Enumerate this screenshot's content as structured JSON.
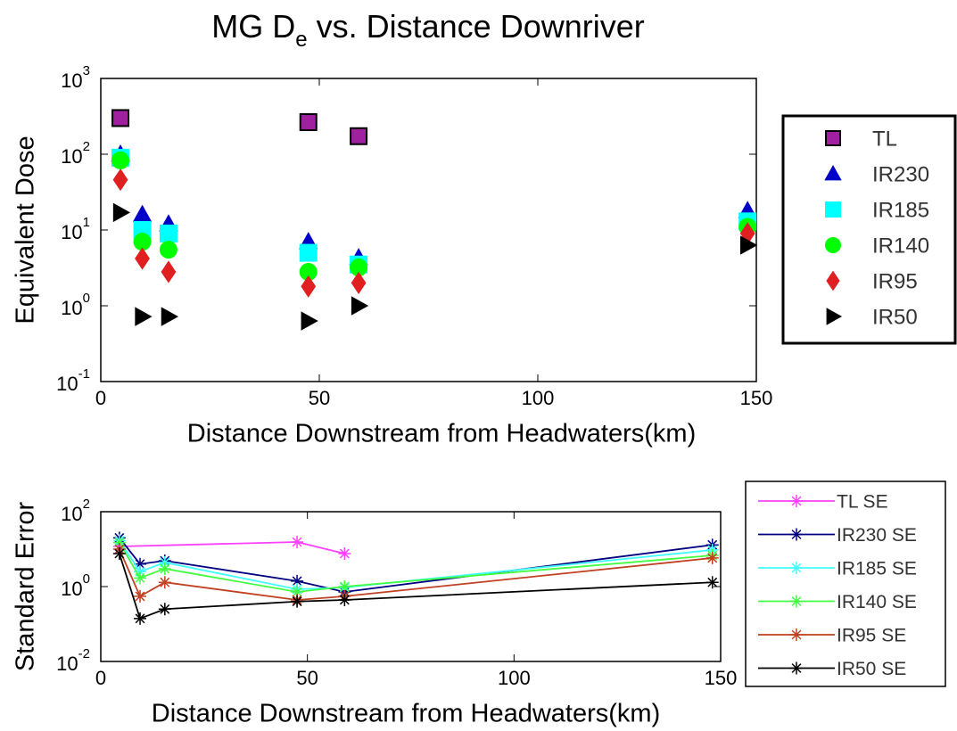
{
  "chart_data": [
    {
      "type": "scatter",
      "title": "MG D",
      "title_subscript": "e",
      "title_rest": " vs. Distance Downriver",
      "xlabel": "Distance Downstream from Headwaters(km)",
      "ylabel": "Equivalent Dose",
      "xlim": [
        0,
        150
      ],
      "xticks": [
        0,
        50,
        100,
        150
      ],
      "ylim": [
        0.1,
        1000
      ],
      "yscale": "log",
      "yticks": [
        {
          "value": 0.1,
          "label": "10",
          "exponent": "-1"
        },
        {
          "value": 1,
          "label": "10",
          "exponent": "0"
        },
        {
          "value": 10,
          "label": "10",
          "exponent": "1"
        },
        {
          "value": 100,
          "label": "10",
          "exponent": "2"
        },
        {
          "value": 1000,
          "label": "10",
          "exponent": "3"
        }
      ],
      "legend": "outside right",
      "x": [
        4.5,
        9.5,
        15.5,
        47.5,
        59,
        148
      ],
      "series": [
        {
          "name": "TL",
          "color": "#a020a0",
          "marker": "square",
          "values": [
            300,
            null,
            null,
            265,
            173,
            null
          ]
        },
        {
          "name": "IR230",
          "color": "#0000c8",
          "marker": "triangle-up",
          "values": [
            100,
            16,
            12,
            7,
            4.3,
            18
          ]
        },
        {
          "name": "IR185",
          "color": "#00ffff",
          "marker": "square",
          "values": [
            90,
            10,
            9,
            5,
            3.5,
            13
          ]
        },
        {
          "name": "IR140",
          "color": "#00ff00",
          "marker": "circle",
          "values": [
            83,
            7,
            5.5,
            2.8,
            3.2,
            11
          ]
        },
        {
          "name": "IR95",
          "color": "#e02020",
          "marker": "diamond",
          "values": [
            46,
            4.2,
            2.8,
            1.8,
            2,
            9
          ]
        },
        {
          "name": "IR50",
          "color": "#000000",
          "marker": "triangle-right",
          "values": [
            17,
            0.72,
            0.72,
            0.63,
            1,
            6.3
          ]
        }
      ]
    },
    {
      "type": "line",
      "xlabel": "Distance Downstream from Headwaters(km)",
      "ylabel": "Standard Error",
      "xlim": [
        0,
        150
      ],
      "xticks": [
        0,
        50,
        100,
        150
      ],
      "ylim": [
        0.01,
        100
      ],
      "yscale": "log",
      "yticks": [
        {
          "value": 0.01,
          "label": "10",
          "exponent": "-2"
        },
        {
          "value": 1,
          "label": "10",
          "exponent": "0"
        },
        {
          "value": 100,
          "label": "10",
          "exponent": "2"
        }
      ],
      "legend": "outside right",
      "series": [
        {
          "name": "TL SE",
          "color": "#ff40ff",
          "x": [
            4.5,
            47.5,
            59
          ],
          "values": [
            11.8,
            15.5,
            7.6
          ]
        },
        {
          "name": "IR230 SE",
          "color": "#000080",
          "x": [
            4.5,
            9.5,
            15.5,
            47.5,
            59,
            148
          ],
          "values": [
            20,
            4,
            4.9,
            1.4,
            0.72,
            13
          ]
        },
        {
          "name": "IR185 SE",
          "color": "#40ffff",
          "x": [
            4.5,
            9.5,
            15.5,
            47.5,
            59,
            148
          ],
          "values": [
            17,
            2.5,
            4.4,
            0.85,
            0.95,
            9.5
          ]
        },
        {
          "name": "IR140 SE",
          "color": "#40ff40",
          "x": [
            4.5,
            9.5,
            15.5,
            47.5,
            59,
            148
          ],
          "values": [
            15,
            1.7,
            3,
            0.72,
            1,
            6.8
          ]
        },
        {
          "name": "IR95 SE",
          "color": "#c04020",
          "x": [
            4.5,
            9.5,
            15.5,
            47.5,
            59,
            148
          ],
          "values": [
            10,
            0.55,
            1.3,
            0.44,
            0.55,
            5.8
          ]
        },
        {
          "name": "IR50 SE",
          "color": "#000000",
          "x": [
            4.5,
            9.5,
            15.5,
            47.5,
            59,
            148
          ],
          "values": [
            7.6,
            0.14,
            0.25,
            0.4,
            0.44,
            1.3
          ]
        }
      ]
    }
  ]
}
